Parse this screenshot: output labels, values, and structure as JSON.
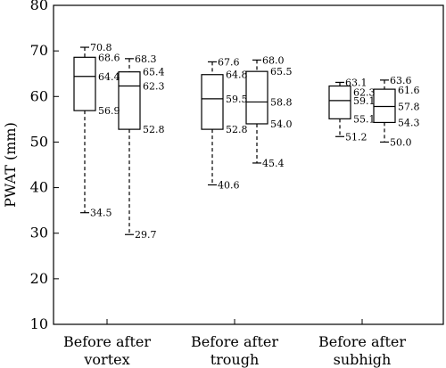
{
  "chart_data": {
    "type": "box",
    "ylabel": "PWAT (mm)",
    "xlabel": "",
    "ylim": [
      10,
      80
    ],
    "yticks": [
      10,
      20,
      30,
      40,
      50,
      60,
      70,
      80
    ],
    "grid": false,
    "groups": [
      {
        "label_lines": [
          "Before after",
          "vortex"
        ],
        "boxes": [
          {
            "max": 70.8,
            "q3": 68.6,
            "median": 64.4,
            "q1": 56.9,
            "min": 34.5
          },
          {
            "max": 68.3,
            "q3": 65.4,
            "median": 62.3,
            "q1": 52.8,
            "min": 29.7
          }
        ]
      },
      {
        "label_lines": [
          "Before after",
          "trough"
        ],
        "boxes": [
          {
            "max": 67.6,
            "q3": 64.8,
            "median": 59.5,
            "q1": 52.8,
            "min": 40.6
          },
          {
            "max": 68.0,
            "q3": 65.5,
            "median": 58.8,
            "q1": 54.0,
            "min": 45.4
          }
        ]
      },
      {
        "label_lines": [
          "Before after",
          "subhigh"
        ],
        "boxes": [
          {
            "max": 63.1,
            "q3": 62.3,
            "median": 59.1,
            "q1": 55.1,
            "min": 51.2
          },
          {
            "max": 63.6,
            "q3": 61.6,
            "median": 57.8,
            "q1": 54.3,
            "min": 50.0
          }
        ]
      }
    ]
  }
}
